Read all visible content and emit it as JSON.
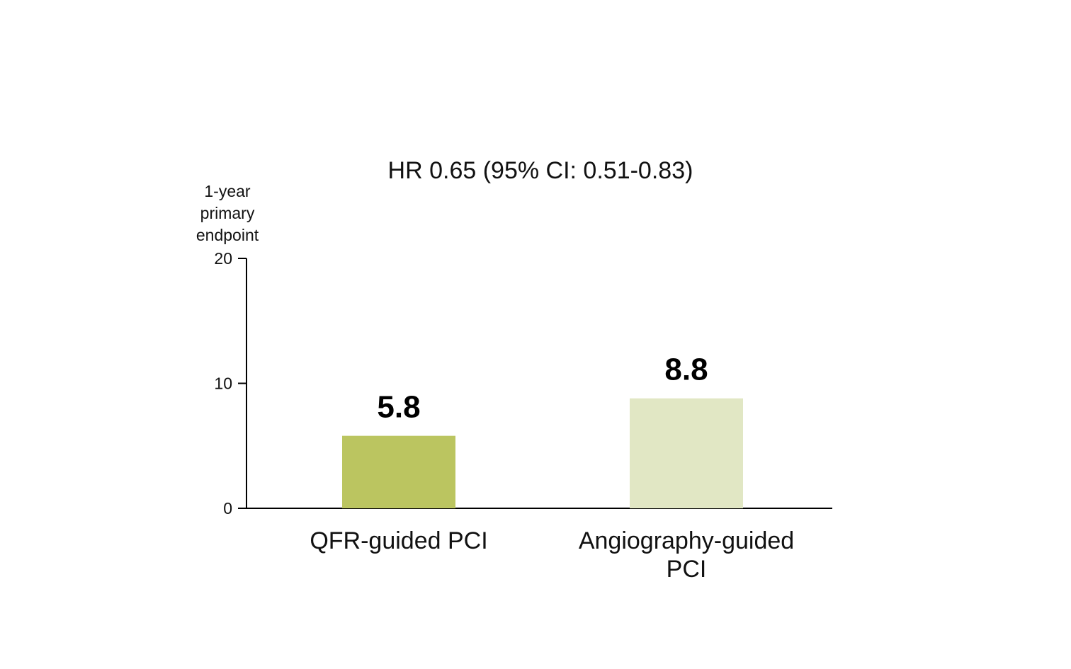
{
  "chart_data": {
    "type": "bar",
    "title": "HR 0.65 (95% CI: 0.51-0.83)",
    "ylabel": "1-year primary endpoint",
    "ylabel_lines": [
      "1-year",
      "primary",
      "endpoint"
    ],
    "xlabel": "",
    "ylim": [
      0,
      20
    ],
    "yticks": [
      0,
      10,
      20
    ],
    "ytick_labels": [
      "0",
      "10",
      "20"
    ],
    "categories": [
      "QFR-guided PCI",
      "Angiography-guided PCI"
    ],
    "category_lines": [
      [
        "QFR-guided PCI"
      ],
      [
        "Angiography-guided",
        "PCI"
      ]
    ],
    "values": [
      5.8,
      8.8
    ],
    "value_labels": [
      "5.8",
      "8.8"
    ],
    "bar_colors": [
      "#bbc560",
      "#e1e7c4"
    ],
    "grid": false,
    "legend": "none"
  }
}
